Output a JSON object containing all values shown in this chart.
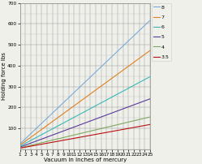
{
  "title": "",
  "xlabel": "Vacuum in inches of mercury",
  "ylabel": "Holding force lbs",
  "x_start": 1,
  "x_end": 25,
  "y_lim": [
    0,
    700
  ],
  "y_ticks": [
    100,
    200,
    300,
    400,
    500,
    600,
    700
  ],
  "x_ticks": [
    1,
    2,
    3,
    4,
    5,
    6,
    7,
    8,
    9,
    10,
    11,
    12,
    13,
    14,
    15,
    16,
    17,
    18,
    19,
    20,
    21,
    22,
    23,
    24,
    25
  ],
  "series": [
    {
      "label": "8",
      "diameter": 8,
      "color": "#7aabdb"
    },
    {
      "label": "7",
      "diameter": 7,
      "color": "#e08020"
    },
    {
      "label": "6",
      "diameter": 6,
      "color": "#3ab8b8"
    },
    {
      "label": "5",
      "diameter": 5,
      "color": "#5a3a9a"
    },
    {
      "label": "4",
      "diameter": 4,
      "color": "#80a860"
    },
    {
      "label": "3.5",
      "diameter": 3.5,
      "color": "#b81010"
    }
  ],
  "background_color": "#f0f0eb",
  "plot_bg_color": "#f0f0eb",
  "grid_color": "#bbbbbb",
  "grid_color_major": "#999999",
  "legend_fontsize": 4.5,
  "axis_label_fontsize": 5,
  "tick_fontsize": 4.2,
  "inHg_to_psi": 0.4912
}
